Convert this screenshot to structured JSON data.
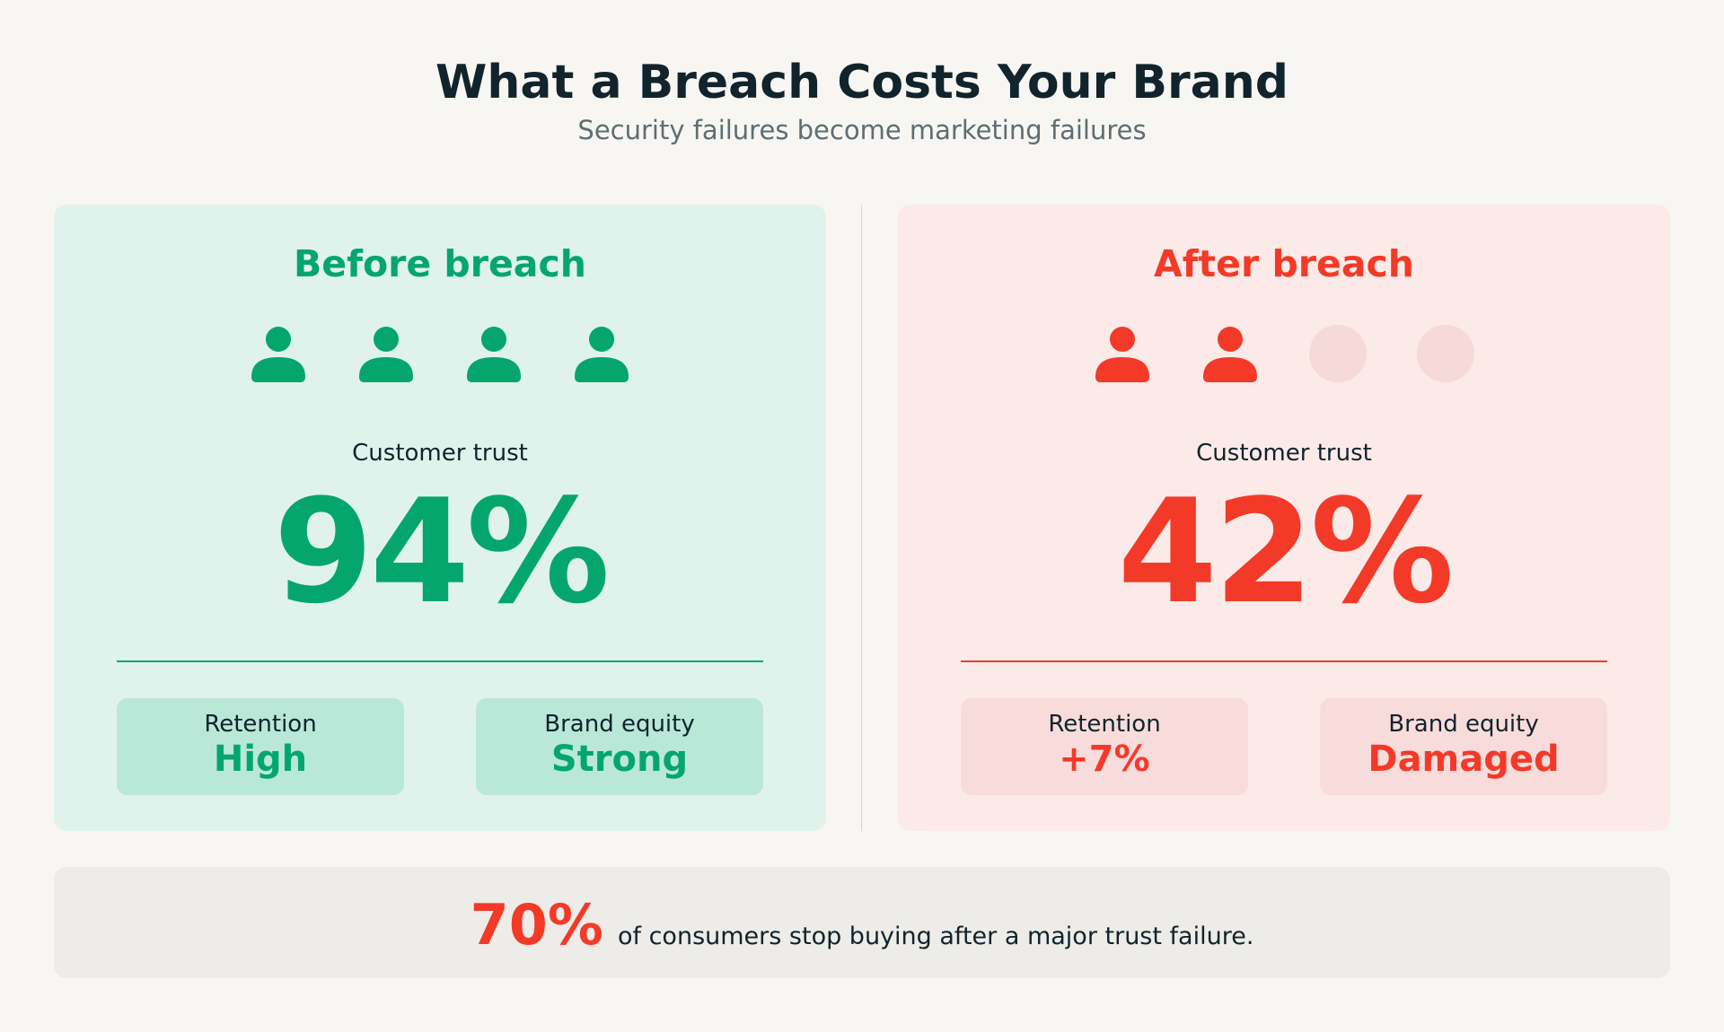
{
  "header": {
    "title": "What a Breach Costs Your Brand",
    "subtitle": "Security failures become marketing failures"
  },
  "panels": [
    {
      "heading": "Before breach",
      "metric_label": "Customer trust",
      "metric": "94%",
      "stats": [
        {
          "label": "Retention",
          "value": "High"
        },
        {
          "label": "Brand equity",
          "value": "Strong"
        }
      ]
    },
    {
      "heading": "After breach",
      "metric_label": "Customer trust",
      "metric": "42%",
      "stats": [
        {
          "label": "Retention",
          "value": "+7%"
        },
        {
          "label": "Brand equity",
          "value": "Damaged"
        }
      ]
    }
  ],
  "footer": {
    "highlight": "70%",
    "text": "of consumers stop buying after a major trust failure."
  }
}
